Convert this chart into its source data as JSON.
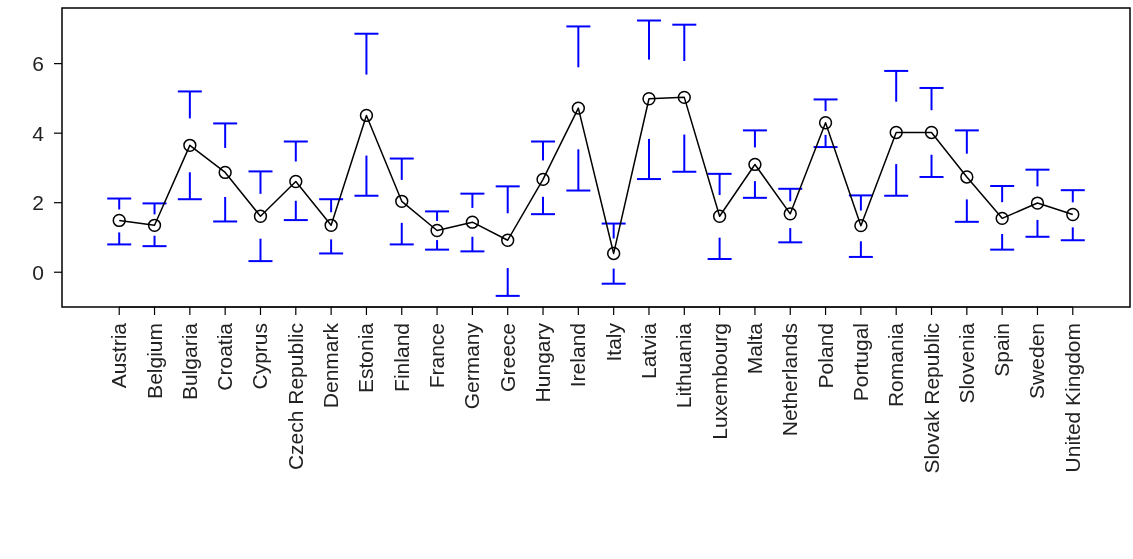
{
  "chart_data": {
    "type": "line",
    "categories": [
      "Austria",
      "Belgium",
      "Bulgaria",
      "Croatia",
      "Cyprus",
      "Czech Republic",
      "Denmark",
      "Estonia",
      "Finland",
      "France",
      "Germany",
      "Greece",
      "Hungary",
      "Ireland",
      "Italy",
      "Latvia",
      "Lithuania",
      "Luxembourg",
      "Malta",
      "Netherlands",
      "Poland",
      "Portugal",
      "Romania",
      "Slovak Republic",
      "Slovenia",
      "Spain",
      "Sweden",
      "United Kingdom"
    ],
    "series": [
      {
        "color": "#000000",
        "values": [
          1.49,
          1.35,
          3.65,
          2.87,
          1.61,
          2.61,
          1.35,
          4.51,
          2.04,
          1.2,
          1.44,
          0.92,
          2.67,
          4.72,
          0.54,
          4.99,
          5.03,
          1.61,
          3.1,
          1.68,
          4.3,
          1.34,
          4.02,
          4.02,
          2.74,
          1.55,
          1.99,
          1.66
        ],
        "errors": [
          [
            0.8,
            2.12
          ],
          [
            0.75,
            1.98
          ],
          [
            2.1,
            5.2
          ],
          [
            1.46,
            4.28
          ],
          [
            0.32,
            2.9
          ],
          [
            1.5,
            3.76
          ],
          [
            0.54,
            2.1
          ],
          [
            2.2,
            6.86
          ],
          [
            0.8,
            3.27
          ],
          [
            0.65,
            1.75
          ],
          [
            0.6,
            2.26
          ],
          [
            -0.68,
            2.47
          ],
          [
            1.67,
            3.76
          ],
          [
            2.35,
            7.07
          ],
          [
            -0.33,
            1.4
          ],
          [
            2.68,
            7.24
          ],
          [
            2.89,
            7.12
          ],
          [
            0.38,
            2.83
          ],
          [
            2.14,
            4.08
          ],
          [
            0.86,
            2.4
          ],
          [
            3.6,
            4.97
          ],
          [
            0.44,
            2.21
          ],
          [
            2.2,
            5.79
          ],
          [
            2.74,
            5.3
          ],
          [
            1.45,
            4.08
          ],
          [
            0.65,
            2.48
          ],
          [
            1.02,
            2.95
          ],
          [
            0.92,
            2.36
          ]
        ]
      }
    ],
    "marker": "circle",
    "line_style": "solid",
    "grid": false,
    "ylim": [
      -1.0,
      7.6
    ],
    "yticks": [
      0,
      2,
      4,
      6
    ]
  }
}
